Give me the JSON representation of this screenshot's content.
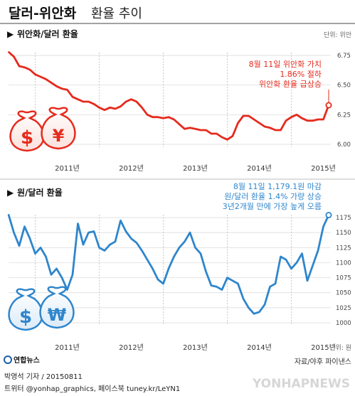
{
  "header": {
    "title_main": "달러-위안화",
    "title_sub": "환율 추이"
  },
  "chart_data": [
    {
      "type": "line",
      "title": "위안화/달러 환율",
      "unit": "단위: 위안",
      "xlabels": [
        "2011년",
        "2012년",
        "2013년",
        "2014년",
        "2015년"
      ],
      "ylim": [
        6.0,
        6.75
      ],
      "yticks": [
        6.0,
        6.25,
        6.5,
        6.75
      ],
      "ytick_labels": [
        "6.00",
        "6.25",
        "6.50",
        "6.75"
      ],
      "color": "#e62a1c",
      "annotation": [
        "8월 11일 위안화 가치",
        "1.86% 절하",
        "위안화 환율 급상승"
      ],
      "series": [
        {
          "points": [
            [
              "2010-08",
              6.78
            ],
            [
              "2010-09",
              6.74
            ],
            [
              "2010-10",
              6.66
            ],
            [
              "2010-11",
              6.65
            ],
            [
              "2010-12",
              6.63
            ],
            [
              "2011-01",
              6.59
            ],
            [
              "2011-02",
              6.57
            ],
            [
              "2011-03",
              6.55
            ],
            [
              "2011-04",
              6.52
            ],
            [
              "2011-05",
              6.49
            ],
            [
              "2011-06",
              6.47
            ],
            [
              "2011-07",
              6.46
            ],
            [
              "2011-08",
              6.4
            ],
            [
              "2011-09",
              6.38
            ],
            [
              "2011-10",
              6.36
            ],
            [
              "2011-11",
              6.36
            ],
            [
              "2011-12",
              6.34
            ],
            [
              "2012-01",
              6.31
            ],
            [
              "2012-02",
              6.29
            ],
            [
              "2012-03",
              6.31
            ],
            [
              "2012-04",
              6.3
            ],
            [
              "2012-05",
              6.32
            ],
            [
              "2012-06",
              6.36
            ],
            [
              "2012-07",
              6.38
            ],
            [
              "2012-08",
              6.36
            ],
            [
              "2012-09",
              6.31
            ],
            [
              "2012-10",
              6.25
            ],
            [
              "2012-11",
              6.23
            ],
            [
              "2012-12",
              6.23
            ],
            [
              "2013-01",
              6.22
            ],
            [
              "2013-02",
              6.23
            ],
            [
              "2013-03",
              6.21
            ],
            [
              "2013-04",
              6.17
            ],
            [
              "2013-05",
              6.13
            ],
            [
              "2013-06",
              6.14
            ],
            [
              "2013-07",
              6.13
            ],
            [
              "2013-08",
              6.12
            ],
            [
              "2013-09",
              6.12
            ],
            [
              "2013-10",
              6.09
            ],
            [
              "2013-11",
              6.09
            ],
            [
              "2013-12",
              6.06
            ],
            [
              "2014-01",
              6.04
            ],
            [
              "2014-02",
              6.07
            ],
            [
              "2014-03",
              6.18
            ],
            [
              "2014-04",
              6.24
            ],
            [
              "2014-05",
              6.24
            ],
            [
              "2014-06",
              6.21
            ],
            [
              "2014-07",
              6.18
            ],
            [
              "2014-08",
              6.15
            ],
            [
              "2014-09",
              6.14
            ],
            [
              "2014-10",
              6.12
            ],
            [
              "2014-11",
              6.12
            ],
            [
              "2014-12",
              6.2
            ],
            [
              "2015-01",
              6.23
            ],
            [
              "2015-02",
              6.25
            ],
            [
              "2015-03",
              6.22
            ],
            [
              "2015-04",
              6.2
            ],
            [
              "2015-05",
              6.2
            ],
            [
              "2015-06",
              6.21
            ],
            [
              "2015-07",
              6.21
            ],
            [
              "2015-08",
              6.33
            ]
          ]
        }
      ]
    },
    {
      "type": "line",
      "title": "원/달러 환율",
      "unit": "단위: 원",
      "xlabels": [
        "2011년",
        "2012년",
        "2013년",
        "2014년",
        "2015년"
      ],
      "ylim": [
        1000,
        1175
      ],
      "yticks": [
        1000,
        1025,
        1050,
        1075,
        1100,
        1125,
        1150,
        1175
      ],
      "ytick_labels": [
        "1000",
        "1025",
        "1050",
        "1075",
        "1100",
        "1125",
        "1150",
        "1175"
      ],
      "color": "#2f86cc",
      "annotation": [
        "8월 11일 1,179.1원 마감",
        "원/달러 환율 1.4% 가량 상승",
        "3년2개월 만에 가장 높게 오름"
      ],
      "series": [
        {
          "points": [
            [
              "2010-08",
              1180
            ],
            [
              "2010-09",
              1150
            ],
            [
              "2010-10",
              1128
            ],
            [
              "2010-11",
              1160
            ],
            [
              "2010-12",
              1140
            ],
            [
              "2011-01",
              1115
            ],
            [
              "2011-02",
              1125
            ],
            [
              "2011-03",
              1110
            ],
            [
              "2011-04",
              1080
            ],
            [
              "2011-05",
              1090
            ],
            [
              "2011-06",
              1075
            ],
            [
              "2011-07",
              1055
            ],
            [
              "2011-08",
              1080
            ],
            [
              "2011-09",
              1165
            ],
            [
              "2011-10",
              1130
            ],
            [
              "2011-11",
              1150
            ],
            [
              "2011-12",
              1152
            ],
            [
              "2012-01",
              1125
            ],
            [
              "2012-02",
              1120
            ],
            [
              "2012-03",
              1130
            ],
            [
              "2012-04",
              1135
            ],
            [
              "2012-05",
              1170
            ],
            [
              "2012-06",
              1152
            ],
            [
              "2012-07",
              1140
            ],
            [
              "2012-08",
              1133
            ],
            [
              "2012-09",
              1120
            ],
            [
              "2012-10",
              1105
            ],
            [
              "2012-11",
              1090
            ],
            [
              "2012-12",
              1072
            ],
            [
              "2013-01",
              1065
            ],
            [
              "2013-02",
              1090
            ],
            [
              "2013-03",
              1110
            ],
            [
              "2013-04",
              1125
            ],
            [
              "2013-05",
              1135
            ],
            [
              "2013-06",
              1150
            ],
            [
              "2013-07",
              1125
            ],
            [
              "2013-08",
              1115
            ],
            [
              "2013-09",
              1085
            ],
            [
              "2013-10",
              1062
            ],
            [
              "2013-11",
              1060
            ],
            [
              "2013-12",
              1055
            ],
            [
              "2014-01",
              1075
            ],
            [
              "2014-02",
              1070
            ],
            [
              "2014-03",
              1065
            ],
            [
              "2014-04",
              1040
            ],
            [
              "2014-05",
              1025
            ],
            [
              "2014-06",
              1015
            ],
            [
              "2014-07",
              1018
            ],
            [
              "2014-08",
              1030
            ],
            [
              "2014-09",
              1060
            ],
            [
              "2014-10",
              1065
            ],
            [
              "2014-11",
              1110
            ],
            [
              "2014-12",
              1105
            ],
            [
              "2015-01",
              1090
            ],
            [
              "2015-02",
              1100
            ],
            [
              "2015-03",
              1115
            ],
            [
              "2015-04",
              1070
            ],
            [
              "2015-05",
              1095
            ],
            [
              "2015-06",
              1120
            ],
            [
              "2015-07",
              1160
            ],
            [
              "2015-08",
              1179.1
            ]
          ]
        }
      ]
    }
  ],
  "footer": {
    "logo_text": "연합뉴스",
    "credit": "박영석 기자 / 20150811",
    "social": "트위터 @yonhap_graphics, 페이스북 tuney.kr/LeYN1",
    "source": "자료/야후 파이낸스",
    "watermark": "YONHAPNEWS"
  }
}
